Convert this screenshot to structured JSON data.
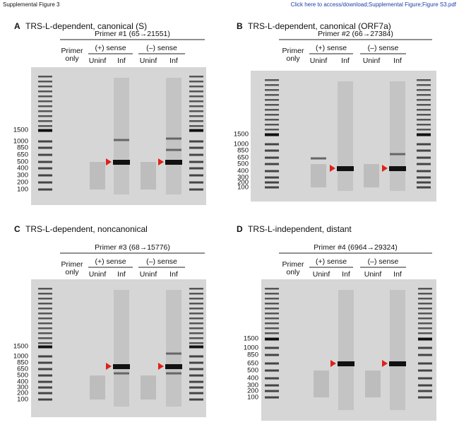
{
  "header": {
    "left": "Supplemental Figure 3",
    "right": "Click here to access/download;Supplemental Figure;Figure S3.pdf"
  },
  "panels": [
    {
      "letter": "A",
      "title": "TRS-L-dependent, canonical (S)",
      "primer": "Primer #1 (65→21551)",
      "primer_only": [
        "Primer",
        "only"
      ],
      "groups": [
        {
          "label": "(+) sense",
          "lanes": [
            "Uninf",
            "Inf"
          ]
        },
        {
          "label": "(–) sense",
          "lanes": [
            "Uninf",
            "Inf"
          ]
        }
      ],
      "markers": [
        "1500",
        "1000",
        "850",
        "650",
        "500",
        "400",
        "300",
        "200",
        "100"
      ]
    },
    {
      "letter": "B",
      "title": "TRS-L-dependent, canonical (ORF7a)",
      "primer": "Primer #2 (66→27384)",
      "primer_only": [
        "Primer",
        "only"
      ],
      "groups": [
        {
          "label": "(+) sense",
          "lanes": [
            "Uninf",
            "Inf"
          ]
        },
        {
          "label": "(–) sense",
          "lanes": [
            "Uninf",
            "Inf"
          ]
        }
      ],
      "markers": [
        "1500",
        "1000",
        "850",
        "650",
        "500",
        "400",
        "300",
        "200",
        "100"
      ]
    },
    {
      "letter": "C",
      "title": "TRS-L-dependent, noncanonical",
      "primer": "Primer #3 (68→15776)",
      "primer_only": [
        "Primer",
        "only"
      ],
      "groups": [
        {
          "label": "(+) sense",
          "lanes": [
            "Uninf",
            "Inf"
          ]
        },
        {
          "label": "(–) sense",
          "lanes": [
            "Uninf",
            "Inf"
          ]
        }
      ],
      "markers": [
        "1500",
        "1000",
        "850",
        "650",
        "500",
        "400",
        "300",
        "200",
        "100"
      ]
    },
    {
      "letter": "D",
      "title": "TRS-L-independent, distant",
      "primer": "Primer #4 (6964→29324)",
      "primer_only": [
        "Primer",
        "only"
      ],
      "groups": [
        {
          "label": "(+) sense",
          "lanes": [
            "Uninf",
            "Inf"
          ]
        },
        {
          "label": "(–) sense",
          "lanes": [
            "Uninf",
            "Inf"
          ]
        }
      ],
      "markers": [
        "1500",
        "1000",
        "850",
        "650",
        "500",
        "400",
        "300",
        "200",
        "100"
      ]
    }
  ]
}
